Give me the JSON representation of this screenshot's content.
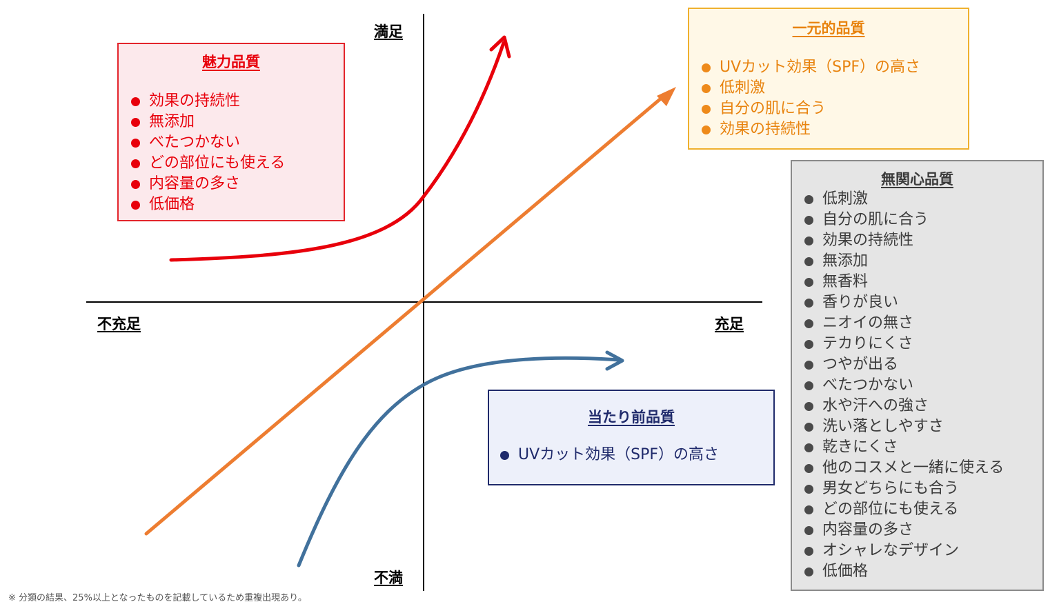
{
  "axes": {
    "top": "満足",
    "bottom": "不満",
    "left": "不充足",
    "right": "充足"
  },
  "boxes": {
    "attractive": {
      "title": "魅力品質",
      "items": [
        "効果の持続性",
        "無添加",
        "べたつかない",
        "どの部位にも使える",
        "内容量の多さ",
        "低価格"
      ]
    },
    "one_dimensional": {
      "title": "一元的品質",
      "items": [
        "UVカット効果（SPF）の高さ",
        "低刺激",
        "自分の肌に合う",
        "効果の持続性"
      ]
    },
    "indifferent": {
      "title": "無関心品質",
      "items": [
        "低刺激",
        "自分の肌に合う",
        "効果の持続性",
        "無添加",
        "無香料",
        "香りが良い",
        "ニオイの無さ",
        "テカりにくさ",
        "つやが出る",
        "べたつかない",
        "水や汗への強さ",
        "洗い落としやすさ",
        "乾きにくさ",
        "他のコスメと一緒に使える",
        "男女どちらにも合う",
        "どの部位にも使える",
        "内容量の多さ",
        "オシャレなデザイン",
        "低価格"
      ]
    },
    "must_be": {
      "title": "当たり前品質",
      "items": [
        "UVカット効果（SPF）の高さ"
      ]
    }
  },
  "colors": {
    "attractive_curve": "#e8000b",
    "one_dimensional_line": "#ed7d31",
    "must_be_curve": "#41719c"
  },
  "footnote": "※ 分類の結果、25%以上となったものを記載しているため重複出現あり。"
}
